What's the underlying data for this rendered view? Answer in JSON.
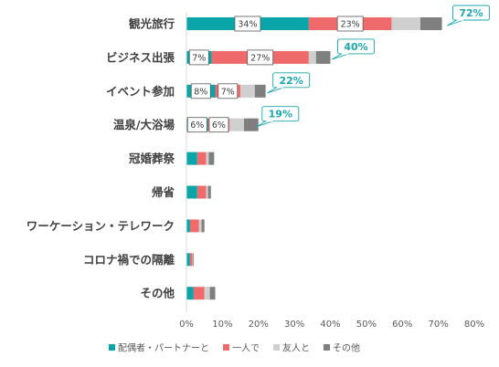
{
  "chart_data": {
    "type": "bar",
    "orientation": "horizontal",
    "stacked": true,
    "categories": [
      "観光旅行",
      "ビジネス出張",
      "イベント参加",
      "温泉/大浴場",
      "冠婚葬祭",
      "帰省",
      "ワーケーション・テレワーク",
      "コロナ禍での隔離",
      "その他"
    ],
    "series": [
      {
        "name": "配偶者・パートナーと",
        "color": "#0aa5a8",
        "values": [
          34,
          7,
          8,
          6,
          3,
          3,
          1,
          1,
          2
        ]
      },
      {
        "name": "一人で",
        "color": "#ef6b6b",
        "values": [
          23,
          27,
          7,
          6,
          2.5,
          2.5,
          2.5,
          0.7,
          3
        ]
      },
      {
        "name": "友人と",
        "color": "#cfcfcf",
        "values": [
          8,
          2,
          4,
          4,
          0.7,
          0.5,
          0.7,
          0.1,
          1.5
        ]
      },
      {
        "name": "その他",
        "color": "#7f7f7f",
        "values": [
          6,
          4,
          3,
          4,
          1.5,
          0.8,
          0.8,
          0.2,
          1.5
        ]
      }
    ],
    "data_labels": [
      {
        "category": 0,
        "series": 0,
        "text": "34%"
      },
      {
        "category": 0,
        "series": 1,
        "text": "23%"
      },
      {
        "category": 1,
        "series": 0,
        "text": "7%"
      },
      {
        "category": 1,
        "series": 1,
        "text": "27%"
      },
      {
        "category": 2,
        "series": 0,
        "text": "8%"
      },
      {
        "category": 2,
        "series": 1,
        "text": "7%"
      },
      {
        "category": 3,
        "series": 0,
        "text": "6%"
      },
      {
        "category": 3,
        "series": 1,
        "text": "6%"
      }
    ],
    "totals": [
      {
        "category": 0,
        "value": 72,
        "text": "72%"
      },
      {
        "category": 1,
        "value": 40,
        "text": "40%"
      },
      {
        "category": 2,
        "value": 22,
        "text": "22%"
      },
      {
        "category": 3,
        "value": 19,
        "text": "19%"
      }
    ],
    "xlim": [
      0,
      80
    ],
    "xticks": [
      0,
      10,
      20,
      30,
      40,
      50,
      60,
      70,
      80
    ],
    "tick_format": "{v}%",
    "grid": false,
    "legend_position": "bottom"
  }
}
